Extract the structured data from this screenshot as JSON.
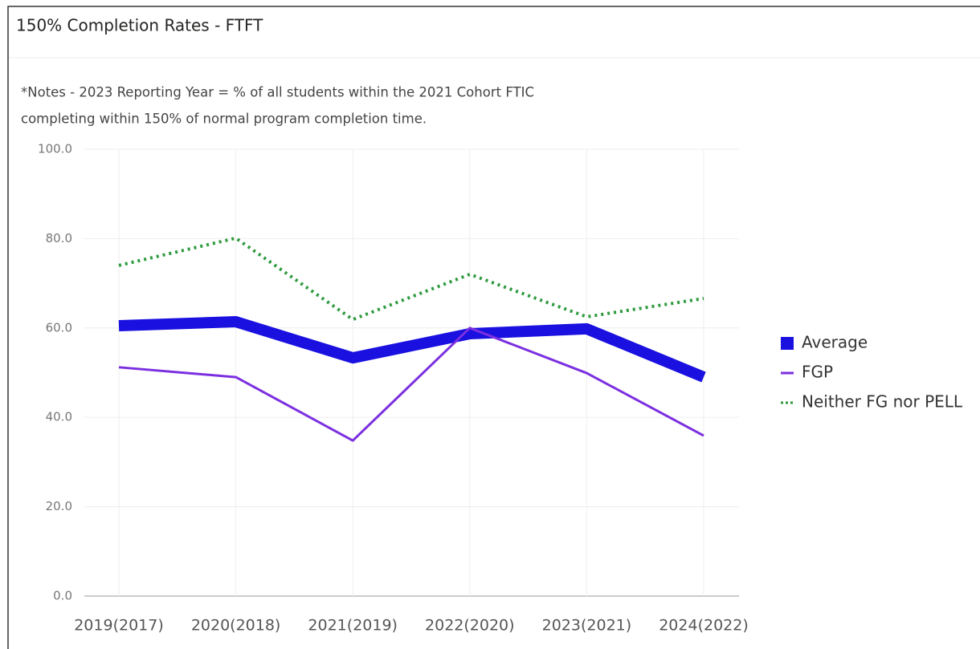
{
  "chart_data": {
    "type": "line",
    "title": "150% Completion Rates - FTFT",
    "notes": [
      "*Notes - 2023 Reporting Year = % of all students within the 2021 Cohort FTIC",
      "completing within 150% of normal program completion time."
    ],
    "categories": [
      "2019(2017)",
      "2020(2018)",
      "2021(2019)",
      "2022(2020)",
      "2023(2021)",
      "2024(2022)"
    ],
    "series": [
      {
        "name": "Average",
        "color": "#1a10e0",
        "line_style": "solid",
        "values": [
          60.5,
          61.4,
          53.3,
          58.7,
          59.8,
          49.0
        ]
      },
      {
        "name": "FGP",
        "color": "#7b2fe0",
        "line_style": "solid",
        "values": [
          51.2,
          49.0,
          34.8,
          60.0,
          49.9,
          35.9
        ]
      },
      {
        "name": "Neither FG nor PELL",
        "color": "#2e9a3e",
        "line_style": "dotted",
        "values": [
          74.0,
          80.1,
          61.9,
          72.0,
          62.5,
          66.6
        ]
      }
    ],
    "ylim": [
      0,
      100
    ],
    "yticks": [
      {
        "value": 0,
        "label": "0.0"
      },
      {
        "value": 20,
        "label": "20.0"
      },
      {
        "value": 40,
        "label": "40.0"
      },
      {
        "value": 60,
        "label": "60.0"
      },
      {
        "value": 80,
        "label": "80.0"
      },
      {
        "value": 100,
        "label": "100.0"
      }
    ],
    "grid": true,
    "legend": "right"
  }
}
